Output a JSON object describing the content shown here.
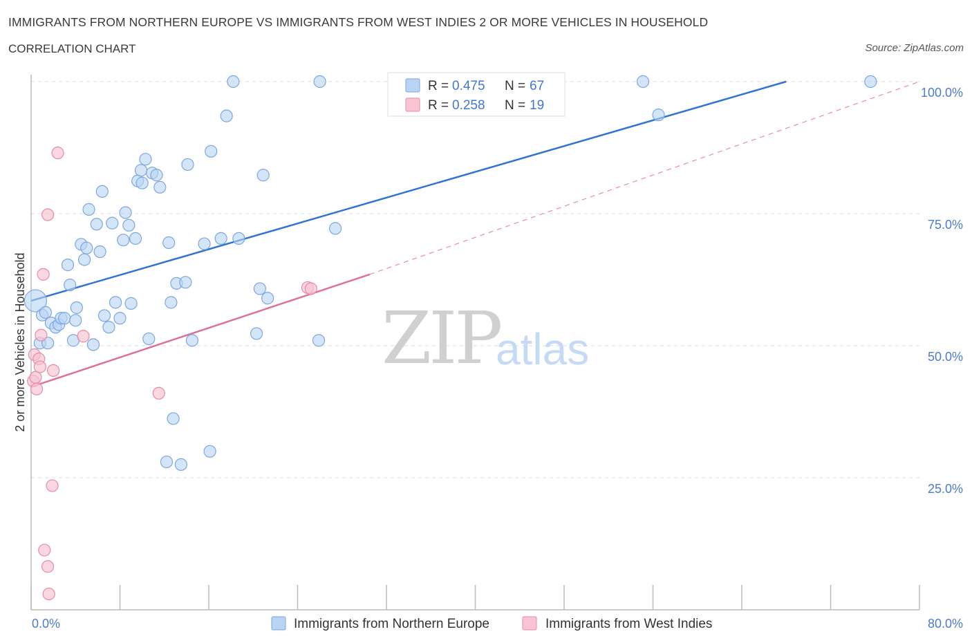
{
  "header": {
    "title": "IMMIGRANTS FROM NORTHERN EUROPE VS IMMIGRANTS FROM WEST INDIES 2 OR MORE VEHICLES IN HOUSEHOLD",
    "subtitle": "CORRELATION CHART",
    "source": "Source: ZipAtlas.com"
  },
  "watermark": {
    "zip": "ZIP",
    "atlas": "atlas"
  },
  "colors": {
    "blue_fill": "#b9d3f3",
    "blue_stroke": "#7ba6e0",
    "blue_line": "#2f74d0",
    "pink_fill": "#f8c3d2",
    "pink_stroke": "#e88aa5",
    "pink_line": "#e0709a",
    "grid": "#dddddd",
    "axis_label": "#4a7cc9"
  },
  "legend": {
    "series1": {
      "r_label": "R = ",
      "r_value": "0.475",
      "n_label": "N = ",
      "n_value": "67"
    },
    "series2": {
      "r_label": "R = ",
      "r_value": "0.258",
      "n_label": "N = ",
      "n_value": "19"
    }
  },
  "chart_data": {
    "type": "scatter",
    "title": "IMMIGRANTS FROM NORTHERN EUROPE VS IMMIGRANTS FROM WEST INDIES 2 OR MORE VEHICLES IN HOUSEHOLD",
    "xlabel": "",
    "ylabel": "2 or more Vehicles in Household",
    "xlim": [
      0,
      80
    ],
    "ylim": [
      0,
      100
    ],
    "x_tick_labels": [
      "0.0%",
      "80.0%"
    ],
    "y_ticks": [
      25,
      50,
      75,
      100
    ],
    "y_tick_labels": [
      "25.0%",
      "50.0%",
      "75.0%",
      "100.0%"
    ],
    "grid": true,
    "legend_position": "top-center",
    "series": [
      {
        "name": "Immigrants from Northern Europe",
        "color": "#b9d3f3",
        "R": 0.475,
        "N": 67,
        "trend": {
          "x": [
            0,
            68
          ],
          "y": [
            58.5,
            102
          ],
          "style": "solid"
        },
        "points": [
          [
            0.4,
            58.5
          ],
          [
            1.0,
            55.8
          ],
          [
            1.3,
            56.3
          ],
          [
            0.8,
            50.5
          ],
          [
            1.5,
            50.5
          ],
          [
            1.8,
            54.3
          ],
          [
            2.2,
            53.5
          ],
          [
            2.5,
            54.0
          ],
          [
            2.7,
            55.2
          ],
          [
            3.0,
            55.2
          ],
          [
            3.3,
            65.3
          ],
          [
            3.5,
            61.5
          ],
          [
            3.8,
            51.0
          ],
          [
            4.1,
            57.2
          ],
          [
            4.5,
            69.2
          ],
          [
            4.8,
            66.3
          ],
          [
            5.0,
            68.5
          ],
          [
            5.2,
            75.8
          ],
          [
            5.6,
            50.2
          ],
          [
            5.9,
            73.0
          ],
          [
            6.2,
            67.8
          ],
          [
            6.4,
            79.2
          ],
          [
            6.6,
            55.7
          ],
          [
            7.0,
            53.5
          ],
          [
            7.3,
            73.2
          ],
          [
            7.6,
            58.2
          ],
          [
            8.0,
            55.2
          ],
          [
            8.3,
            70.0
          ],
          [
            8.5,
            75.2
          ],
          [
            8.8,
            72.8
          ],
          [
            9.0,
            58.0
          ],
          [
            9.4,
            70.3
          ],
          [
            9.6,
            81.2
          ],
          [
            9.9,
            83.2
          ],
          [
            10.0,
            80.8
          ],
          [
            10.3,
            85.3
          ],
          [
            10.6,
            51.3
          ],
          [
            10.9,
            82.7
          ],
          [
            11.3,
            82.3
          ],
          [
            11.6,
            80.0
          ],
          [
            12.4,
            69.5
          ],
          [
            12.6,
            58.2
          ],
          [
            12.8,
            36.2
          ],
          [
            13.1,
            61.8
          ],
          [
            12.2,
            28.0
          ],
          [
            13.5,
            27.5
          ],
          [
            13.9,
            62.0
          ],
          [
            14.1,
            84.3
          ],
          [
            14.5,
            51.0
          ],
          [
            15.6,
            69.3
          ],
          [
            16.1,
            30.0
          ],
          [
            16.2,
            86.8
          ],
          [
            17.1,
            70.3
          ],
          [
            17.6,
            93.5
          ],
          [
            18.2,
            100.0
          ],
          [
            18.7,
            70.3
          ],
          [
            20.3,
            52.3
          ],
          [
            20.6,
            60.8
          ],
          [
            20.9,
            82.3
          ],
          [
            21.3,
            59.0
          ],
          [
            25.9,
            51.0
          ],
          [
            26.0,
            100.0
          ],
          [
            27.4,
            72.2
          ],
          [
            55.1,
            100.0
          ],
          [
            56.5,
            93.7
          ],
          [
            75.6,
            100.0
          ],
          [
            4.0,
            54.8
          ]
        ]
      },
      {
        "name": "Immigrants from West Indies",
        "color": "#f8c3d2",
        "R": 0.258,
        "N": 19,
        "trend": {
          "x": [
            0,
            30.5
          ],
          "y": [
            42.2,
            63.5
          ],
          "style": "solid",
          "extended_x": [
            30.5,
            80
          ],
          "extended_y": [
            63.5,
            100
          ],
          "extended_style": "dashed"
        },
        "points": [
          [
            0.2,
            43.3
          ],
          [
            0.3,
            48.3
          ],
          [
            0.4,
            44.0
          ],
          [
            0.5,
            41.8
          ],
          [
            0.7,
            47.5
          ],
          [
            0.8,
            46.0
          ],
          [
            0.9,
            52.0
          ],
          [
            1.1,
            63.5
          ],
          [
            1.2,
            11.3
          ],
          [
            1.5,
            8.2
          ],
          [
            1.6,
            3.0
          ],
          [
            1.5,
            74.8
          ],
          [
            1.9,
            23.5
          ],
          [
            2.0,
            45.3
          ],
          [
            2.4,
            86.5
          ],
          [
            4.7,
            51.8
          ],
          [
            11.5,
            41.0
          ],
          [
            24.9,
            61.0
          ],
          [
            25.2,
            60.8
          ]
        ]
      }
    ]
  }
}
